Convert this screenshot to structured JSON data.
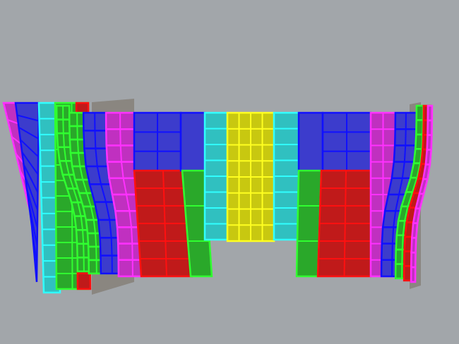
{
  "viewport": {
    "background": "#a2a6aa",
    "palette": {
      "blue": "#3c3ccc",
      "blue_edge": "#1010ff",
      "red": "#c01a1a",
      "red_edge": "#ff1010",
      "green": "#2aa82a",
      "green_edge": "#30ff30",
      "cyan": "#30c0c0",
      "cyan_edge": "#30ffff",
      "yellow": "#c8c810",
      "yellow_edge": "#ffff20",
      "magenta": "#c030c0",
      "magenta_edge": "#ff30ff",
      "wall": "#8a8680"
    }
  }
}
